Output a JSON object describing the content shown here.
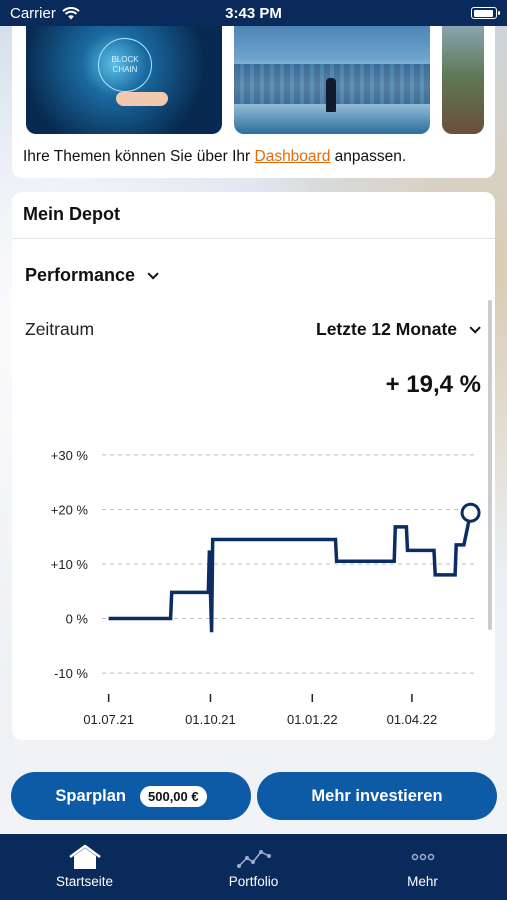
{
  "status_bar": {
    "carrier": "Carrier",
    "time": "3:43 PM",
    "battery_level": 0.95
  },
  "topics": {
    "thumbnail_1_text": "BLOCK\nCHAIN",
    "text_before_link": "Ihre Themen können Sie über Ihr ",
    "link_label": "Dashboard",
    "text_after_link": " anpassen."
  },
  "depot": {
    "title": "Mein Depot",
    "metric_select": "Performance",
    "period_label": "Zeitraum",
    "period_select": "Letzte 12 Monate",
    "performance_value": "+ 19,4 %"
  },
  "chart_data": {
    "type": "line",
    "title": "",
    "xlabel": "",
    "ylabel": "",
    "ylim": [
      -12,
      32
    ],
    "y_ticks": [
      30,
      20,
      10,
      0,
      -10
    ],
    "y_tick_labels": [
      "+30 %",
      "+20 %",
      "+10 %",
      "0 %",
      "-10 %"
    ],
    "x_ticks": [
      "01.07.21",
      "01.10.21",
      "01.01.22",
      "01.04.22"
    ],
    "grid": true,
    "color": "#0c2d63",
    "series": [
      {
        "points": [
          [
            "2021-07-01",
            0
          ],
          [
            "2021-08-26",
            0
          ],
          [
            "2021-08-27",
            4.8
          ],
          [
            "2021-09-29",
            4.8
          ],
          [
            "2021-09-30",
            12.5
          ],
          [
            "2021-10-01",
            4.5
          ],
          [
            "2021-10-02",
            -2.5
          ],
          [
            "2021-10-03",
            14.5
          ],
          [
            "2021-11-01",
            14.5
          ],
          [
            "2021-12-01",
            14.5
          ],
          [
            "2022-01-22",
            14.5
          ],
          [
            "2022-01-23",
            10.5
          ],
          [
            "2022-02-15",
            10.5
          ],
          [
            "2022-03-16",
            10.5
          ],
          [
            "2022-03-17",
            16.8
          ],
          [
            "2022-03-27",
            16.8
          ],
          [
            "2022-03-28",
            12.5
          ],
          [
            "2022-04-21",
            12.5
          ],
          [
            "2022-04-22",
            8.0
          ],
          [
            "2022-05-10",
            8.0
          ],
          [
            "2022-05-11",
            13.5
          ],
          [
            "2022-05-18",
            13.5
          ],
          [
            "2022-05-24",
            19.4
          ]
        ]
      }
    ],
    "end_marker": [
      "2022-05-24",
      19.4
    ]
  },
  "actions": {
    "sparplan_label": "Sparplan",
    "sparplan_amount": "500,00 €",
    "invest_label": "Mehr investieren"
  },
  "tabs": [
    {
      "label": "Startseite",
      "icon": "home-icon",
      "active": true
    },
    {
      "label": "Portfolio",
      "icon": "chart-line-icon",
      "active": false
    },
    {
      "label": "Mehr",
      "icon": "more-dots-icon",
      "active": false
    }
  ]
}
